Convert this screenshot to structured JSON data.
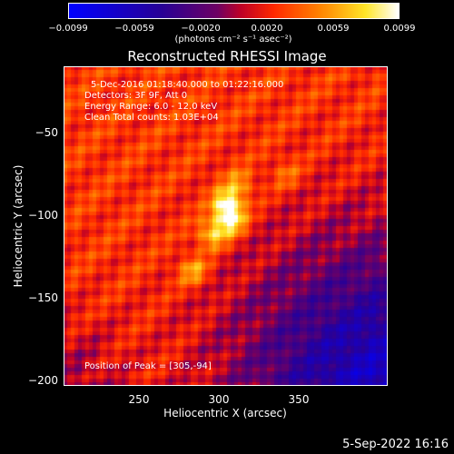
{
  "colorbar": {
    "ticks": [
      "−0.0099",
      "−0.0059",
      "−0.0020",
      "0.0020",
      "0.0059",
      "0.0099"
    ],
    "units": "(photons cm⁻² s⁻¹ asec⁻²)"
  },
  "annotations": {
    "time_range": "5-Dec-2016 01:18:40.000 to 01:22:16.000",
    "detectors": "Detectors: 3F 9F, Att 0",
    "energy": "Energy Range: 6.0 - 12.0 keV",
    "clean": "Clean    Total counts: 1.03E+04",
    "peak": "Position of Peak = [305,-94]"
  },
  "timestamp": "5-Sep-2022 16:16",
  "chart_data": {
    "type": "heatmap",
    "title": "Reconstructed RHESSI Image",
    "xlabel": "Heliocentric X (arcsec)",
    "ylabel": "Heliocentric Y (arcsec)",
    "xlim": [
      208,
      400
    ],
    "ylim": [
      -203,
      -11
    ],
    "xticks": [
      250,
      300,
      350
    ],
    "yticks": [
      -50,
      -100,
      -150,
      -200
    ],
    "zlim": [
      -0.0099,
      0.0099
    ],
    "colormap": "Hot-Metal blue-purple-red-yellow-white",
    "peak": [
      305,
      -94
    ],
    "sources": [
      {
        "x": 305,
        "y": -94,
        "peak_value": 0.0099
      },
      {
        "x": 307,
        "y": -104,
        "peak_value": 0.009
      },
      {
        "x": 296,
        "y": -112,
        "peak_value": 0.008
      },
      {
        "x": 285,
        "y": -134,
        "peak_value": 0.007
      },
      {
        "x": 312,
        "y": -82,
        "peak_value": 0.0062
      },
      {
        "x": 340,
        "y": -76,
        "peak_value": 0.005
      }
    ]
  },
  "colors": {
    "background": "#000000",
    "text": "#ffffff",
    "cmap_low": "#0000ff",
    "cmap_mid_low": "#6a0070",
    "cmap_mid": "#ff3000",
    "cmap_high": "#ffff30",
    "cmap_max": "#ffffff"
  }
}
